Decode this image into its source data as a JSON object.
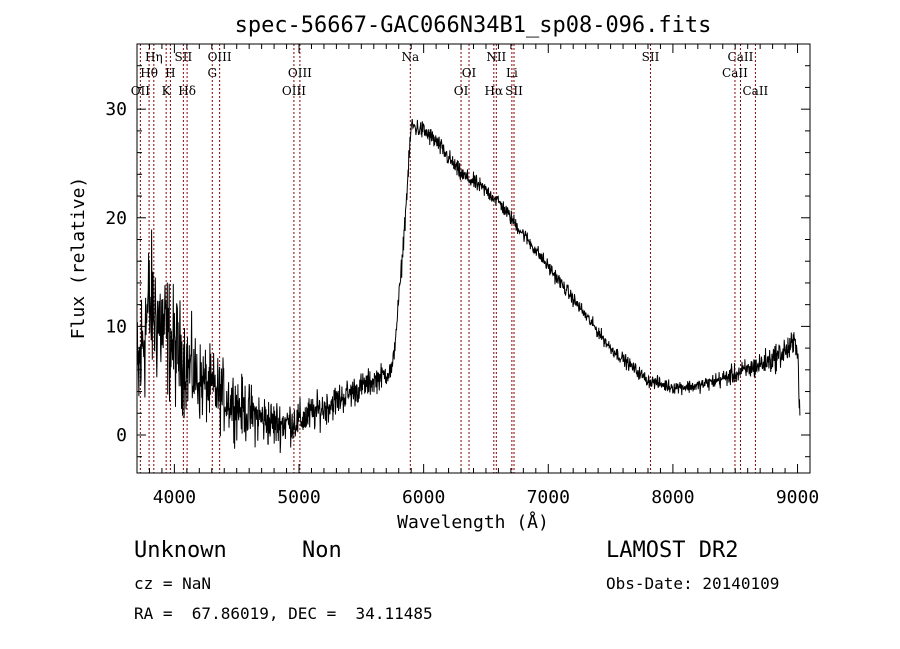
{
  "chart_data": {
    "type": "line",
    "title": "spec-56667-GAC066N34B1_sp08-096.fits",
    "xlabel": "Wavelength (Å)",
    "ylabel": "Flux (relative)",
    "xlim": [
      3700,
      9100
    ],
    "ylim": [
      -3.5,
      36
    ],
    "xticks": [
      4000,
      5000,
      6000,
      7000,
      8000,
      9000
    ],
    "yticks": [
      0,
      10,
      20,
      30
    ],
    "grid": false,
    "line_color": "#000000",
    "marker_color": "#8b0000",
    "lines": [
      {
        "name": "Hη",
        "wavelength": 3835,
        "row": 0
      },
      {
        "name": "Hθ",
        "wavelength": 3797,
        "row": 1
      },
      {
        "name": "OII",
        "wavelength": 3727,
        "row": 2
      },
      {
        "name": "H",
        "wavelength": 3968,
        "row": 1
      },
      {
        "name": "K",
        "wavelength": 3934,
        "row": 2
      },
      {
        "name": "SII",
        "wavelength": 4072,
        "row": 0
      },
      {
        "name": "Hδ",
        "wavelength": 4102,
        "row": 2
      },
      {
        "name": "OIII",
        "wavelength": 4363,
        "row": 0
      },
      {
        "name": "G",
        "wavelength": 4304,
        "row": 1
      },
      {
        "name": "OIII",
        "wavelength": 5007,
        "row": 1
      },
      {
        "name": "OIII",
        "wavelength": 4959,
        "row": 2
      },
      {
        "name": "Na",
        "wavelength": 5893,
        "row": 0
      },
      {
        "name": "OI",
        "wavelength": 6364,
        "row": 1
      },
      {
        "name": "OI",
        "wavelength": 6300,
        "row": 2
      },
      {
        "name": "NII",
        "wavelength": 6583,
        "row": 0
      },
      {
        "name": "Hα",
        "wavelength": 6563,
        "row": 2
      },
      {
        "name": "Li",
        "wavelength": 6708,
        "row": 1
      },
      {
        "name": "SII",
        "wavelength": 6725,
        "row": 2
      },
      {
        "name": "SII",
        "wavelength": 7820,
        "row": 0
      },
      {
        "name": "CaII",
        "wavelength": 8542,
        "row": 0
      },
      {
        "name": "CaII",
        "wavelength": 8498,
        "row": 1
      },
      {
        "name": "CaII",
        "wavelength": 8662,
        "row": 2
      }
    ],
    "continuum_anchors": {
      "x": [
        3700,
        3750,
        3800,
        3900,
        4000,
        4200,
        4400,
        4600,
        4800,
        5000,
        5200,
        5400,
        5600,
        5750,
        5820,
        5870,
        5900,
        6000,
        6100,
        6200,
        6300,
        6400,
        6500,
        6600,
        6700,
        6800,
        6900,
        7000,
        7100,
        7200,
        7300,
        7400,
        7500,
        7600,
        7700,
        7800,
        8000,
        8200,
        8400,
        8600,
        8800,
        9000,
        9020
      ],
      "y": [
        4,
        9,
        12,
        10,
        8,
        5,
        3.5,
        2,
        1,
        1.3,
        2.5,
        3.8,
        5,
        6,
        15,
        23,
        28.5,
        28,
        27,
        25.5,
        24,
        23.3,
        22.5,
        21.5,
        20,
        18.5,
        17,
        15.5,
        14,
        12.5,
        11,
        9.5,
        8,
        7,
        6,
        5,
        4.4,
        4.5,
        5.2,
        6,
        7,
        8.5,
        1
      ]
    },
    "noise_profile": {
      "x": [
        3700,
        3900,
        4200,
        4600,
        5000,
        5500,
        5800,
        6500,
        7500,
        8200,
        9000,
        9020
      ],
      "sigma": [
        6,
        5,
        3,
        2.2,
        1.5,
        1.1,
        0.8,
        0.6,
        0.5,
        0.5,
        1.2,
        1.2
      ]
    }
  },
  "info": {
    "class": "Unknown",
    "subclass": "Non",
    "survey": "LAMOST DR2",
    "cz": "cz = NaN",
    "obs_date": "Obs-Date: 20140109",
    "radec": "RA =  67.86019, DEC =  34.11485"
  }
}
